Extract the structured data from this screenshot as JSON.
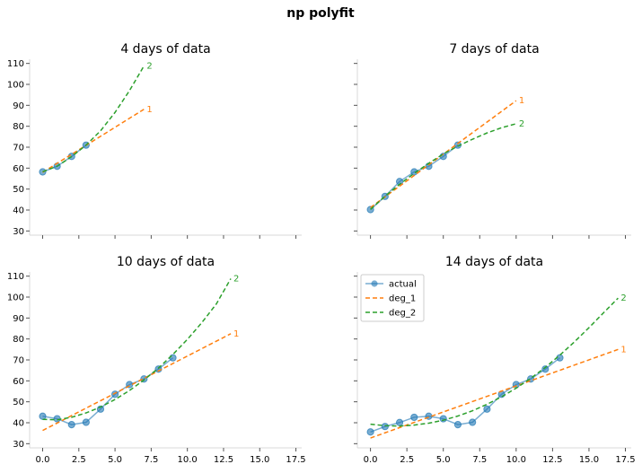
{
  "suptitle": "np polyfit",
  "colors": {
    "actual": "#1f77b4",
    "deg_1": "#ff7f0e",
    "deg_2": "#2ca02c"
  },
  "legend": {
    "placement": "upper-left",
    "entries": [
      {
        "key": "actual",
        "label": "actual",
        "style": "solid-marker"
      },
      {
        "key": "deg_1",
        "label": "deg_1",
        "style": "dashed"
      },
      {
        "key": "deg_2",
        "label": "deg_2",
        "style": "dashed"
      }
    ]
  },
  "x_ticks": [
    0,
    2.5,
    5,
    7.5,
    10,
    12.5,
    15,
    17.5
  ],
  "x_tick_labels": [
    "0.0",
    "2.5",
    "5.0",
    "7.5",
    "10.0",
    "12.5",
    "15.0",
    "17.5"
  ],
  "y_ticks": [
    30,
    40,
    50,
    60,
    70,
    80,
    90,
    100,
    110
  ],
  "y_tick_labels": [
    "30",
    "40",
    "50",
    "60",
    "70",
    "80",
    "90",
    "100",
    "110"
  ],
  "chart_data": [
    {
      "type": "line",
      "title": "4 days of data",
      "xlim": [
        -0.9,
        17.9
      ],
      "ylim": [
        28,
        112
      ],
      "show_x_labels": false,
      "show_y_labels": true,
      "series": [
        {
          "name": "actual",
          "x": [
            0,
            1,
            2,
            3
          ],
          "y": [
            58.2,
            60.9,
            65.6,
            71.0
          ]
        },
        {
          "name": "deg_1",
          "x": [
            0,
            1,
            2,
            3,
            4,
            5,
            6,
            7
          ],
          "y": [
            58.0,
            62.3,
            66.6,
            70.9,
            75.2,
            79.5,
            83.8,
            88.1
          ]
        },
        {
          "name": "deg_2",
          "x": [
            0,
            1,
            2,
            3,
            4,
            5,
            6,
            7
          ],
          "y": [
            58.3,
            60.9,
            65.5,
            71.0,
            77.8,
            86.6,
            97.0,
            108.8
          ]
        }
      ],
      "line_labels": [
        {
          "text": "1",
          "series": "deg_1"
        },
        {
          "text": "2",
          "series": "deg_2"
        }
      ]
    },
    {
      "type": "line",
      "title": "7 days of data",
      "xlim": [
        -0.9,
        17.9
      ],
      "ylim": [
        28,
        112
      ],
      "show_x_labels": false,
      "show_y_labels": false,
      "series": [
        {
          "name": "actual",
          "x": [
            0,
            1,
            2,
            3,
            4,
            5,
            6
          ],
          "y": [
            40.2,
            46.5,
            53.6,
            58.2,
            60.9,
            65.6,
            71.0
          ]
        },
        {
          "name": "deg_1",
          "x": [
            0,
            1,
            2,
            3,
            4,
            5,
            6,
            7,
            8,
            9,
            10
          ],
          "y": [
            41.2,
            46.3,
            51.4,
            56.5,
            61.6,
            66.7,
            71.8,
            76.9,
            82.0,
            87.1,
            92.2
          ]
        },
        {
          "name": "deg_2",
          "x": [
            0,
            1,
            2,
            3,
            4,
            5,
            6,
            7,
            8,
            9,
            10
          ],
          "y": [
            40.3,
            46.6,
            52.3,
            57.5,
            62.3,
            66.8,
            70.5,
            73.8,
            76.8,
            79.3,
            81.2
          ]
        }
      ],
      "line_labels": [
        {
          "text": "1",
          "series": "deg_1"
        },
        {
          "text": "2",
          "series": "deg_2"
        }
      ]
    },
    {
      "type": "line",
      "title": "10 days of data",
      "xlim": [
        -0.9,
        17.9
      ],
      "ylim": [
        28,
        112
      ],
      "show_x_labels": true,
      "show_y_labels": true,
      "series": [
        {
          "name": "actual",
          "x": [
            0,
            1,
            2,
            3,
            4,
            5,
            6,
            7,
            8,
            9
          ],
          "y": [
            43.1,
            41.9,
            39.1,
            40.2,
            46.5,
            53.6,
            58.2,
            60.9,
            65.6,
            71.0
          ]
        },
        {
          "name": "deg_1",
          "x": [
            0,
            13
          ],
          "y": [
            36.3,
            82.5
          ]
        },
        {
          "name": "deg_2",
          "x": [
            0,
            1,
            2,
            3,
            4,
            5,
            6,
            7,
            8,
            9,
            10,
            11,
            12,
            13
          ],
          "y": [
            41.6,
            41.4,
            42.6,
            44.7,
            47.5,
            51.1,
            55.4,
            60.4,
            66.1,
            72.6,
            79.8,
            87.8,
            96.7,
            108.8
          ]
        }
      ],
      "line_labels": [
        {
          "text": "1",
          "series": "deg_1"
        },
        {
          "text": "2",
          "series": "deg_2"
        }
      ]
    },
    {
      "type": "line",
      "title": "14 days of data",
      "xlim": [
        -0.9,
        17.9
      ],
      "ylim": [
        28,
        112
      ],
      "show_x_labels": true,
      "show_y_labels": false,
      "legend": true,
      "series": [
        {
          "name": "actual",
          "x": [
            0,
            1,
            2,
            3,
            4,
            5,
            6,
            7,
            8,
            9,
            10,
            11,
            12,
            13
          ],
          "y": [
            35.6,
            38.2,
            40.1,
            42.6,
            43.1,
            41.9,
            39.1,
            40.2,
            46.5,
            53.6,
            58.2,
            60.9,
            65.6,
            71.0
          ]
        },
        {
          "name": "deg_1",
          "x": [
            0,
            17
          ],
          "y": [
            32.7,
            75.0
          ]
        },
        {
          "name": "deg_2",
          "x": [
            0,
            1,
            2,
            3,
            4,
            5,
            6,
            7,
            8,
            9,
            10,
            11,
            12,
            13,
            14,
            15,
            16,
            17
          ],
          "y": [
            39.3,
            38.6,
            38.4,
            38.9,
            39.8,
            41.2,
            43.2,
            45.7,
            48.8,
            52.4,
            56.5,
            61.2,
            66.4,
            72.3,
            78.6,
            85.4,
            92.5,
            99.5
          ]
        }
      ],
      "line_labels": [
        {
          "text": "1",
          "series": "deg_1"
        },
        {
          "text": "2",
          "series": "deg_2"
        }
      ]
    }
  ]
}
